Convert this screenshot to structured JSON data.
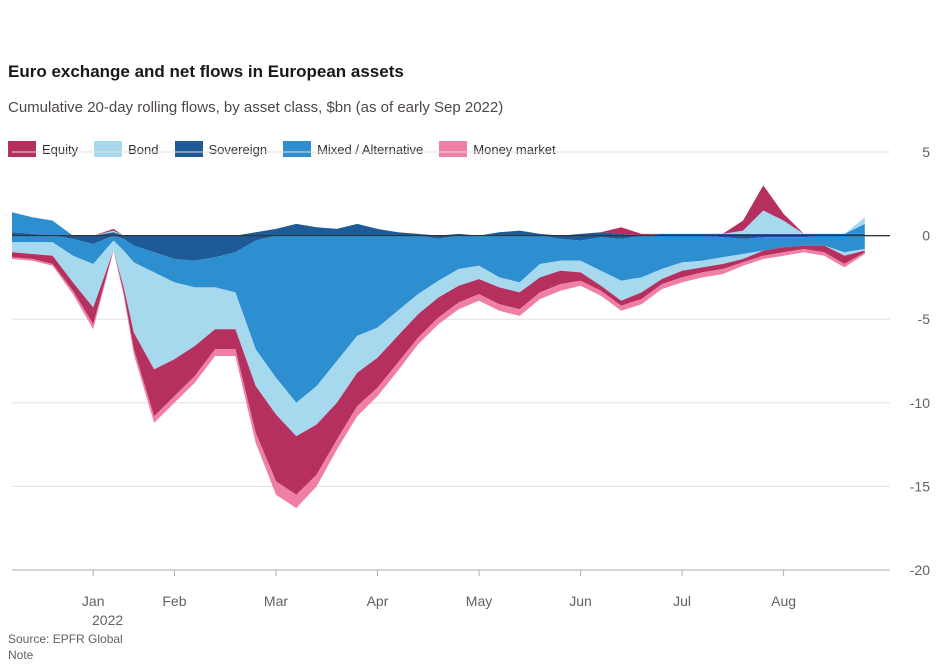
{
  "header": {
    "title": "Euro exchange and net flows in European assets",
    "subtitle": "Cumulative 20-day rolling flows, by asset class, $bn (as of early Sep 2022)"
  },
  "legend": [
    {
      "label": "Equity",
      "color": "#b5305f"
    },
    {
      "label": "Bond",
      "color": "#a6d8ee"
    },
    {
      "label": "Sovereign",
      "color": "#1e5a96"
    },
    {
      "label": "Mixed / Alternative",
      "color": "#2d8fd0"
    },
    {
      "label": "Money market",
      "color": "#f07fa8"
    }
  ],
  "footer": {
    "year": "2022",
    "source": "Source: EPFR Global",
    "note": "Note"
  },
  "chart_data": {
    "type": "area",
    "stacked": true,
    "title": "Euro exchange and net flows in European assets",
    "subtitle": "Cumulative 20-day rolling flows, by asset class, $bn (as of early Sep 2022)",
    "xlabel": "",
    "ylabel": "",
    "x_tick_labels": [
      "Jan",
      "Feb",
      "Mar",
      "Apr",
      "May",
      "Jun",
      "Jul",
      "Aug"
    ],
    "x_tick_positions": [
      0.2,
      1,
      2,
      3,
      4,
      5,
      6,
      7
    ],
    "xlim": [
      -0.6,
      7.9
    ],
    "y_tick_labels": [
      "5",
      "0",
      "-5",
      "-10",
      "-15",
      "-20"
    ],
    "y_tick_values": [
      5,
      0,
      -5,
      -10,
      -15,
      -20
    ],
    "ylim": [
      -20,
      5
    ],
    "grid": true,
    "legend_position": "top",
    "x": [
      -0.6,
      -0.4,
      -0.2,
      0.0,
      0.2,
      0.4,
      0.5,
      0.6,
      0.8,
      1.0,
      1.2,
      1.4,
      1.6,
      1.8,
      2.0,
      2.2,
      2.4,
      2.6,
      2.8,
      3.0,
      3.2,
      3.4,
      3.6,
      3.8,
      4.0,
      4.2,
      4.4,
      4.6,
      4.8,
      5.0,
      5.2,
      5.4,
      5.6,
      5.8,
      6.0,
      6.2,
      6.4,
      6.6,
      6.8,
      7.0,
      7.2,
      7.4,
      7.6,
      7.8
    ],
    "series": [
      {
        "name": "Sovereign",
        "color": "#1e5a96",
        "pos": [
          0.2,
          0.1,
          0,
          0,
          0,
          0.2,
          0,
          0,
          0,
          0,
          0,
          0,
          0,
          0.2,
          0.4,
          0.7,
          0.5,
          0.4,
          0.7,
          0.4,
          0.2,
          0.1,
          0,
          0.1,
          0,
          0.2,
          0.3,
          0.1,
          0,
          0.1,
          0.2,
          0.1,
          0,
          0.1,
          0.1,
          0.1,
          0.1,
          0.1,
          0.1,
          0.1,
          0.1,
          0.1,
          0.1,
          0.1
        ],
        "neg": [
          0,
          0,
          0,
          -0.2,
          -0.5,
          0,
          -0.2,
          -0.6,
          -1.0,
          -1.4,
          -1.5,
          -1.3,
          -1.0,
          -0.3,
          0,
          0,
          0,
          0,
          0,
          0,
          0,
          0,
          -0.2,
          0,
          0,
          0,
          0,
          0,
          -0.2,
          -0.3,
          -0.1,
          -0.2,
          0,
          0,
          0,
          0,
          -0.1,
          -0.2,
          -0.1,
          -0.1,
          -0.1,
          0,
          0,
          0
        ]
      },
      {
        "name": "Mixed / Alternative",
        "color": "#2d8fd0",
        "pos": [
          1.2,
          1.0,
          0.9,
          0,
          0,
          0,
          0,
          0,
          0,
          0,
          0,
          0,
          0,
          0,
          0,
          0,
          0,
          0,
          0,
          0,
          0,
          0,
          0,
          0,
          0,
          0,
          0,
          0,
          0,
          0,
          0,
          0,
          0,
          0,
          0,
          0,
          0,
          0,
          0,
          0,
          0,
          0,
          0,
          0.6
        ],
        "neg": [
          -0.4,
          -0.4,
          -0.4,
          -1.0,
          -1.2,
          -0.3,
          -0.7,
          -1.0,
          -1.2,
          -1.4,
          -1.6,
          -1.8,
          -2.4,
          -6.5,
          -8.5,
          -10.0,
          -9.0,
          -7.5,
          -6.0,
          -5.5,
          -4.5,
          -3.5,
          -2.5,
          -2.0,
          -1.8,
          -2.5,
          -2.8,
          -1.7,
          -1.3,
          -1.2,
          -2.0,
          -2.5,
          -2.5,
          -2.0,
          -1.6,
          -1.5,
          -1.2,
          -0.9,
          -0.8,
          -0.6,
          -0.5,
          -0.6,
          -1.0,
          -0.8
        ]
      },
      {
        "name": "Bond",
        "color": "#a6d8ee",
        "pos": [
          0,
          0,
          0,
          0,
          0,
          0.1,
          0,
          0,
          0,
          0,
          0,
          0,
          0,
          0,
          0,
          0,
          0,
          0,
          0,
          0,
          0,
          0,
          0,
          0,
          0,
          0,
          0,
          0,
          0,
          0,
          0,
          0,
          0,
          0,
          0,
          0,
          0,
          0.2,
          1.4,
          0.8,
          0,
          0,
          0,
          0.4
        ],
        "neg": [
          -0.6,
          -0.7,
          -0.8,
          -1.6,
          -2.6,
          -0.6,
          -2.2,
          -4.2,
          -5.8,
          -4.6,
          -3.5,
          -2.5,
          -2.2,
          -2.2,
          -2.2,
          -2.0,
          -2.3,
          -2.5,
          -2.2,
          -1.8,
          -1.5,
          -1.2,
          -1.0,
          -1.0,
          -0.8,
          -0.6,
          -0.6,
          -0.8,
          -0.6,
          -0.7,
          -0.9,
          -1.2,
          -0.9,
          -0.6,
          -0.5,
          -0.4,
          -0.4,
          -0.3,
          0,
          0,
          0,
          0,
          -0.2,
          -0.1
        ]
      },
      {
        "name": "Equity",
        "color": "#b5305f",
        "pos": [
          0,
          0,
          0,
          0,
          0,
          0.1,
          0,
          0,
          0,
          0,
          0,
          0,
          0,
          0,
          0,
          0,
          0,
          0,
          0,
          0,
          0,
          0,
          0,
          0,
          0,
          0,
          0,
          0,
          0,
          0,
          0,
          0.4,
          0.1,
          0,
          0,
          0,
          0,
          0.6,
          1.5,
          0.4,
          0,
          0,
          0,
          0
        ],
        "neg": [
          -0.3,
          -0.3,
          -0.5,
          -0.5,
          -1.0,
          0,
          -0.3,
          -1.0,
          -2.8,
          -2.2,
          -1.8,
          -1.2,
          -1.2,
          -2.8,
          -4.0,
          -3.5,
          -3.0,
          -2.2,
          -2.0,
          -1.8,
          -1.6,
          -1.4,
          -1.2,
          -1.0,
          -0.9,
          -1.0,
          -1.0,
          -0.9,
          -0.8,
          -0.5,
          -0.3,
          -0.3,
          -0.4,
          -0.3,
          -0.4,
          -0.3,
          -0.3,
          -0.2,
          -0.3,
          -0.3,
          -0.2,
          -0.4,
          -0.5,
          -0.1
        ]
      },
      {
        "name": "Money market",
        "color": "#f07fa8",
        "pos": [
          0,
          0,
          0,
          0,
          0,
          0,
          0,
          0,
          0,
          0,
          0,
          0,
          0,
          0,
          0,
          0,
          0,
          0,
          0,
          0,
          0,
          0,
          0,
          0,
          0,
          0,
          0,
          0,
          0,
          0,
          0,
          0,
          0,
          0,
          0,
          0,
          0,
          0,
          0,
          0,
          0,
          0,
          0,
          0
        ],
        "neg": [
          -0.1,
          -0.1,
          -0.1,
          -0.2,
          -0.3,
          0,
          -0.2,
          -0.3,
          -0.4,
          -0.4,
          -0.4,
          -0.4,
          -0.4,
          -0.6,
          -0.8,
          -0.8,
          -0.7,
          -0.6,
          -0.6,
          -0.5,
          -0.5,
          -0.4,
          -0.4,
          -0.4,
          -0.4,
          -0.4,
          -0.4,
          -0.4,
          -0.4,
          -0.3,
          -0.3,
          -0.3,
          -0.3,
          -0.3,
          -0.3,
          -0.3,
          -0.3,
          -0.2,
          -0.2,
          -0.2,
          -0.2,
          -0.2,
          -0.2,
          -0.1
        ]
      }
    ]
  }
}
